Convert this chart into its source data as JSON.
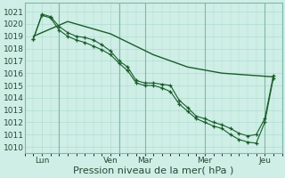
{
  "bg_color": "#ceeee6",
  "grid_minor_color": "#b0ddd0",
  "grid_major_color": "#80b8a8",
  "line_color": "#1a5c2a",
  "smooth_line": {
    "x": [
      0,
      4,
      9,
      14,
      18,
      22,
      28
    ],
    "y": [
      1019.0,
      1020.2,
      1019.2,
      1017.5,
      1016.5,
      1016.0,
      1015.7
    ]
  },
  "line_a": {
    "x": [
      0,
      1,
      2,
      3,
      4,
      5,
      6,
      7,
      8,
      9,
      10,
      11,
      12,
      13,
      14,
      15,
      16,
      17,
      18,
      19,
      20,
      21,
      22,
      23,
      24,
      25,
      26,
      27,
      28
    ],
    "y": [
      1018.8,
      1020.8,
      1020.6,
      1019.8,
      1019.3,
      1019.0,
      1018.9,
      1018.7,
      1018.3,
      1017.8,
      1017.0,
      1016.5,
      1015.4,
      1015.2,
      1015.2,
      1015.1,
      1015.0,
      1013.8,
      1013.2,
      1012.5,
      1012.3,
      1012.0,
      1011.8,
      1011.5,
      1011.1,
      1010.9,
      1011.0,
      1012.3,
      1015.8
    ]
  },
  "line_b": {
    "x": [
      0,
      1,
      2,
      3,
      4,
      5,
      6,
      7,
      8,
      9,
      10,
      11,
      12,
      13,
      14,
      15,
      16,
      17,
      18,
      19,
      20,
      21,
      22,
      23,
      24,
      25,
      26,
      27,
      28
    ],
    "y": [
      1018.8,
      1020.7,
      1020.5,
      1019.5,
      1019.0,
      1018.7,
      1018.5,
      1018.2,
      1017.9,
      1017.5,
      1016.8,
      1016.2,
      1015.2,
      1015.0,
      1015.0,
      1014.8,
      1014.5,
      1013.5,
      1012.9,
      1012.3,
      1012.0,
      1011.7,
      1011.5,
      1011.0,
      1010.6,
      1010.4,
      1010.3,
      1012.0,
      1015.6
    ]
  },
  "day_vlines": [
    3,
    10,
    13,
    20,
    27
  ],
  "xtick_positions": [
    1,
    9,
    13,
    20,
    27
  ],
  "xtick_labels": [
    "Lun",
    "Ven",
    "Mar",
    "Mer",
    "Jeu"
  ],
  "ylim": [
    1009.5,
    1021.7
  ],
  "xlim": [
    -0.5,
    28.5
  ],
  "yticks": [
    1010,
    1011,
    1012,
    1013,
    1014,
    1015,
    1016,
    1017,
    1018,
    1019,
    1020,
    1021
  ],
  "xlabel": "Pression niveau de la mer( hPa )",
  "xlabel_fontsize": 8
}
